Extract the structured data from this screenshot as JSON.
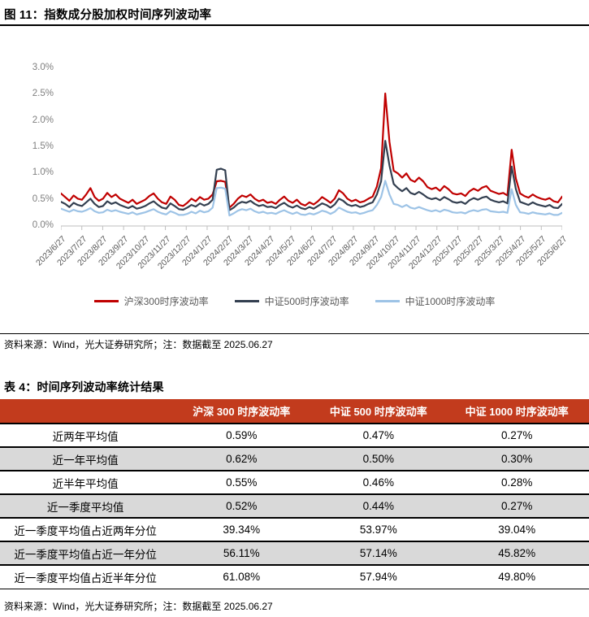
{
  "figure": {
    "title": "图 11：指数成分股加权时间序列波动率",
    "source_note": "资料来源：Wind，光大证券研究所；注：数据截至 2025.06.27"
  },
  "chart_data": {
    "type": "line",
    "title": "指数成分股加权时间序列波动率",
    "xlabel": "",
    "ylabel": "",
    "ylim": [
      0.0,
      3.0
    ],
    "grid": false,
    "legend_position": "bottom",
    "y_tick_labels": [
      "0.0%",
      "0.5%",
      "1.0%",
      "1.5%",
      "2.0%",
      "2.5%",
      "3.0%"
    ],
    "x_tick_labels": [
      "2023/6/27",
      "2023/7/27",
      "2023/8/27",
      "2023/9/27",
      "2023/10/27",
      "2023/11/27",
      "2023/12/27",
      "2024/1/27",
      "2024/2/27",
      "2024/3/27",
      "2024/4/27",
      "2024/5/27",
      "2024/6/27",
      "2024/7/27",
      "2024/8/27",
      "2024/9/27",
      "2024/10/27",
      "2024/11/27",
      "2024/12/27",
      "2025/1/27",
      "2025/2/27",
      "2025/3/27",
      "2025/4/27",
      "2025/5/27",
      "2025/6/27"
    ],
    "unit": "percent",
    "series": [
      {
        "name": "沪深300时序波动率",
        "color": "#C00000",
        "values": [
          0.62,
          0.55,
          0.48,
          0.58,
          0.52,
          0.5,
          0.6,
          0.72,
          0.55,
          0.48,
          0.52,
          0.63,
          0.55,
          0.6,
          0.52,
          0.48,
          0.44,
          0.5,
          0.42,
          0.46,
          0.5,
          0.57,
          0.62,
          0.52,
          0.45,
          0.42,
          0.56,
          0.5,
          0.4,
          0.38,
          0.44,
          0.52,
          0.47,
          0.55,
          0.5,
          0.52,
          0.6,
          0.85,
          0.86,
          0.84,
          0.35,
          0.42,
          0.52,
          0.58,
          0.55,
          0.6,
          0.52,
          0.47,
          0.5,
          0.44,
          0.46,
          0.42,
          0.5,
          0.56,
          0.48,
          0.44,
          0.5,
          0.42,
          0.39,
          0.45,
          0.41,
          0.47,
          0.55,
          0.5,
          0.44,
          0.52,
          0.68,
          0.62,
          0.52,
          0.47,
          0.5,
          0.45,
          0.47,
          0.52,
          0.56,
          0.75,
          1.1,
          2.52,
          1.6,
          1.05,
          1.0,
          0.92,
          1.0,
          0.88,
          0.84,
          0.92,
          0.85,
          0.74,
          0.7,
          0.73,
          0.67,
          0.76,
          0.7,
          0.62,
          0.6,
          0.62,
          0.57,
          0.66,
          0.71,
          0.67,
          0.73,
          0.76,
          0.67,
          0.64,
          0.61,
          0.63,
          0.58,
          1.45,
          0.9,
          0.62,
          0.57,
          0.54,
          0.6,
          0.55,
          0.52,
          0.5,
          0.53,
          0.47,
          0.45,
          0.56
        ]
      },
      {
        "name": "中证500时序波动率",
        "color": "#333F50",
        "values": [
          0.46,
          0.42,
          0.36,
          0.44,
          0.4,
          0.38,
          0.45,
          0.52,
          0.42,
          0.36,
          0.38,
          0.47,
          0.42,
          0.45,
          0.4,
          0.37,
          0.34,
          0.38,
          0.33,
          0.35,
          0.38,
          0.43,
          0.47,
          0.4,
          0.35,
          0.33,
          0.43,
          0.38,
          0.32,
          0.31,
          0.35,
          0.4,
          0.37,
          0.43,
          0.39,
          0.42,
          0.5,
          1.07,
          1.09,
          1.06,
          0.3,
          0.35,
          0.42,
          0.46,
          0.44,
          0.48,
          0.42,
          0.38,
          0.4,
          0.36,
          0.37,
          0.34,
          0.4,
          0.44,
          0.38,
          0.35,
          0.39,
          0.34,
          0.32,
          0.36,
          0.33,
          0.38,
          0.43,
          0.4,
          0.35,
          0.41,
          0.52,
          0.48,
          0.41,
          0.38,
          0.4,
          0.36,
          0.38,
          0.42,
          0.45,
          0.6,
          0.85,
          1.62,
          1.15,
          0.8,
          0.72,
          0.66,
          0.72,
          0.63,
          0.6,
          0.65,
          0.6,
          0.54,
          0.51,
          0.53,
          0.49,
          0.55,
          0.51,
          0.46,
          0.44,
          0.46,
          0.42,
          0.49,
          0.53,
          0.5,
          0.54,
          0.56,
          0.5,
          0.47,
          0.45,
          0.47,
          0.43,
          1.13,
          0.7,
          0.46,
          0.43,
          0.4,
          0.45,
          0.41,
          0.39,
          0.37,
          0.4,
          0.35,
          0.34,
          0.42
        ]
      },
      {
        "name": "中证1000时序波动率",
        "color": "#9DC3E6",
        "values": [
          0.33,
          0.3,
          0.27,
          0.31,
          0.28,
          0.27,
          0.3,
          0.34,
          0.28,
          0.25,
          0.26,
          0.31,
          0.28,
          0.3,
          0.27,
          0.25,
          0.23,
          0.26,
          0.22,
          0.24,
          0.26,
          0.29,
          0.32,
          0.27,
          0.24,
          0.22,
          0.28,
          0.25,
          0.21,
          0.21,
          0.23,
          0.27,
          0.24,
          0.29,
          0.26,
          0.28,
          0.35,
          0.72,
          0.73,
          0.71,
          0.2,
          0.24,
          0.29,
          0.32,
          0.3,
          0.33,
          0.28,
          0.25,
          0.27,
          0.24,
          0.25,
          0.23,
          0.27,
          0.3,
          0.26,
          0.23,
          0.26,
          0.22,
          0.21,
          0.24,
          0.22,
          0.25,
          0.29,
          0.27,
          0.23,
          0.27,
          0.35,
          0.31,
          0.27,
          0.25,
          0.26,
          0.23,
          0.25,
          0.28,
          0.3,
          0.4,
          0.55,
          0.86,
          0.6,
          0.42,
          0.4,
          0.36,
          0.4,
          0.35,
          0.33,
          0.36,
          0.33,
          0.3,
          0.28,
          0.3,
          0.27,
          0.31,
          0.29,
          0.26,
          0.25,
          0.26,
          0.24,
          0.28,
          0.3,
          0.28,
          0.31,
          0.32,
          0.28,
          0.27,
          0.26,
          0.27,
          0.25,
          0.7,
          0.4,
          0.26,
          0.25,
          0.23,
          0.26,
          0.24,
          0.23,
          0.22,
          0.24,
          0.21,
          0.21,
          0.25
        ]
      }
    ]
  },
  "table": {
    "title": "表 4：时间序列波动率统计结果",
    "header_bg": "#C23B1D",
    "row_alt_bg": "#D9D9D9",
    "headers": [
      "",
      "沪深 300 时序波动率",
      "中证 500 时序波动率",
      "中证 1000 时序波动率"
    ],
    "rows": [
      {
        "label": "近两年平均值",
        "values": [
          "0.59%",
          "0.47%",
          "0.27%"
        ]
      },
      {
        "label": "近一年平均值",
        "values": [
          "0.62%",
          "0.50%",
          "0.30%"
        ]
      },
      {
        "label": "近半年平均值",
        "values": [
          "0.55%",
          "0.46%",
          "0.28%"
        ]
      },
      {
        "label": "近一季度平均值",
        "values": [
          "0.52%",
          "0.44%",
          "0.27%"
        ]
      },
      {
        "label": "近一季度平均值占近两年分位",
        "values": [
          "39.34%",
          "53.97%",
          "39.04%"
        ]
      },
      {
        "label": "近一季度平均值占近一年分位",
        "values": [
          "56.11%",
          "57.14%",
          "45.82%"
        ]
      },
      {
        "label": "近一季度平均值占近半年分位",
        "values": [
          "61.08%",
          "57.94%",
          "49.80%"
        ]
      }
    ],
    "source_note": "资料来源：Wind，光大证券研究所；注：数据截至 2025.06.27"
  }
}
